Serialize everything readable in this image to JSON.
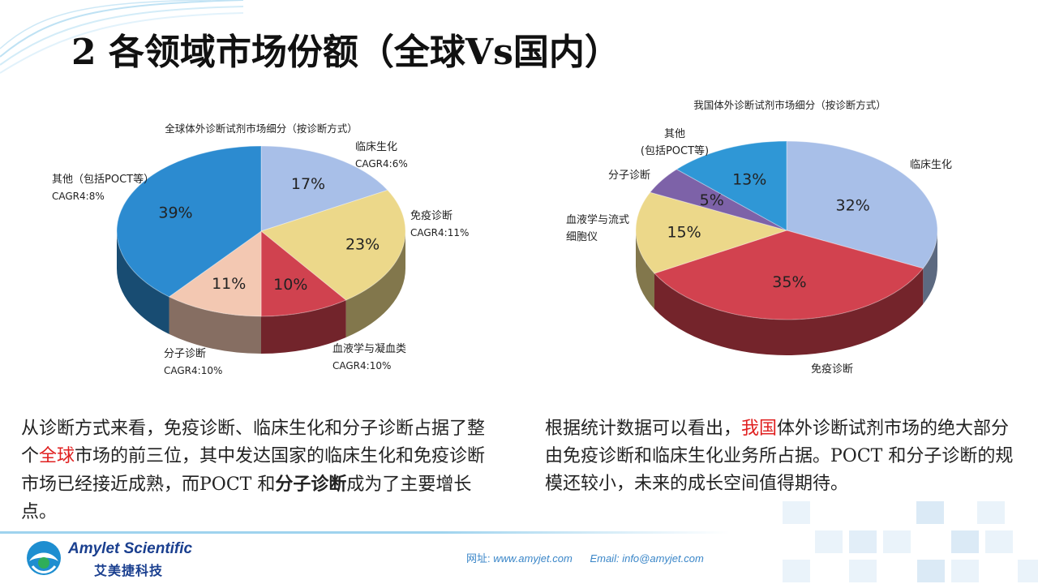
{
  "slide": {
    "title": "2 各领域市场份额（全球Vs国内）"
  },
  "chart_data": [
    {
      "type": "pie",
      "title": "全球体外诊断试剂市场细分（按诊断方式）",
      "slices": [
        {
          "label": "临床生化",
          "sub": "CAGR4:6%",
          "value": 17,
          "value_label": "17%",
          "color": "#a8bfe8"
        },
        {
          "label": "免疫诊断",
          "sub": "CAGR4:11%",
          "value": 23,
          "value_label": "23%",
          "color": "#ecd88a"
        },
        {
          "label": "血液学与凝血类",
          "sub": "CAGR4:10%",
          "value": 10,
          "value_label": "10%",
          "color": "#d0424f"
        },
        {
          "label": "分子诊断",
          "sub": "CAGR4:10%",
          "value": 11,
          "value_label": "11%",
          "color": "#f3c8b2"
        },
        {
          "label": "其他（包括POCT等）",
          "sub": "CAGR4:8%",
          "value": 39,
          "value_label": "39%",
          "color": "#2c8bd0"
        }
      ]
    },
    {
      "type": "pie",
      "title": "我国体外诊断试剂市场细分（按诊断方式）",
      "slices": [
        {
          "label": "临床生化",
          "sub": "",
          "value": 32,
          "value_label": "32%",
          "color": "#a8bfe8"
        },
        {
          "label": "免疫诊断",
          "sub": "",
          "value": 35,
          "value_label": "35%",
          "color": "#d2424f"
        },
        {
          "label": "血液学与流式细胞仪",
          "sub": "",
          "value": 15,
          "value_label": "15%",
          "color": "#ecd88a"
        },
        {
          "label": "分子诊断",
          "sub": "",
          "value": 5,
          "value_label": "5%",
          "color": "#7d62a8"
        },
        {
          "label": "其他（包括POCT等）",
          "sub": "",
          "value": 13,
          "value_label": "13%",
          "color": "#2f97d6"
        }
      ]
    }
  ],
  "paragraphs": {
    "left": {
      "t1": "从诊断方式来看，免疫诊断、临床生化和分子诊断占据了整个",
      "hl": "全球",
      "t2": "市场的前三位，其中发达国家的临床生化和免疫诊断市场已经接近成熟，而POCT 和",
      "bold": "分子诊断",
      "t3": "成为了主要增长点。"
    },
    "right": {
      "t1": "根据统计数据可以看出，",
      "hl": "我国",
      "t2": "体外诊断试剂市场的绝大部分由免疫诊断和临床生化业务所占据。POCT 和分子诊断的规模还较小，未来的成长空间值得期待。"
    }
  },
  "footer": {
    "logo_en": "Amylet Scientific",
    "logo_cn": "艾美捷科技",
    "website_label": "网址:",
    "website": "www.amyjet.com",
    "email_label": "Email:",
    "email": "info@amyjet.com"
  },
  "colors": {
    "accent_red": "#e02020",
    "brand_blue": "#1a3f8f",
    "link_blue": "#3a86c8"
  }
}
